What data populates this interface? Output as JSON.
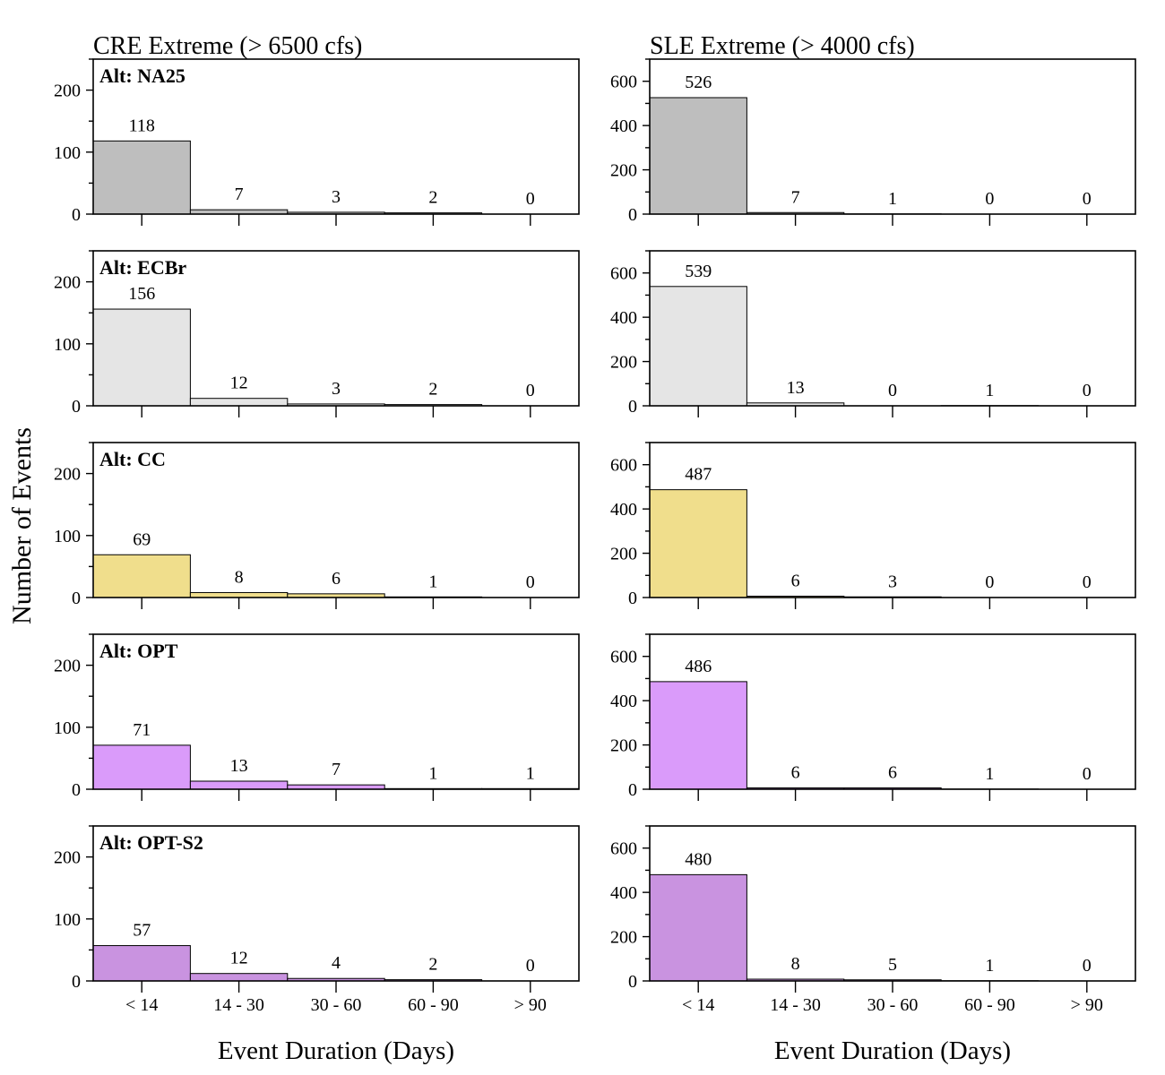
{
  "chart_data": {
    "type": "bar",
    "categories": [
      "< 14",
      "14 - 30",
      "30 - 60",
      "60 - 90",
      "> 90"
    ],
    "xlabel": "Event Duration (Days)",
    "ylabel": "Number of Events",
    "columns": [
      {
        "title": "CRE Extreme (> 6500 cfs)",
        "ylim": [
          0,
          250
        ],
        "ticks": [
          0,
          100,
          200
        ]
      },
      {
        "title": "SLE Extreme (> 4000 cfs)",
        "ylim": [
          0,
          700
        ],
        "ticks": [
          0,
          200,
          400,
          600
        ]
      }
    ],
    "alternatives": [
      {
        "label": "Alt: NA25",
        "color": "#bebebe",
        "cre": [
          118,
          7,
          3,
          2,
          0
        ],
        "sle": [
          526,
          7,
          1,
          0,
          0
        ]
      },
      {
        "label": "Alt: ECBr",
        "color": "#e5e5e5",
        "cre": [
          156,
          12,
          3,
          2,
          0
        ],
        "sle": [
          539,
          13,
          0,
          1,
          0
        ]
      },
      {
        "label": "Alt: CC",
        "color": "#f0de8c",
        "cre": [
          69,
          8,
          6,
          1,
          0
        ],
        "sle": [
          487,
          6,
          3,
          0,
          0
        ]
      },
      {
        "label": "Alt: OPT",
        "color": "#da9bfa",
        "cre": [
          71,
          13,
          7,
          1,
          1
        ],
        "sle": [
          486,
          6,
          6,
          1,
          0
        ]
      },
      {
        "label": "Alt: OPT-S2",
        "color": "#c993e0",
        "cre": [
          57,
          12,
          4,
          2,
          0
        ],
        "sle": [
          480,
          8,
          5,
          1,
          0
        ]
      }
    ]
  }
}
